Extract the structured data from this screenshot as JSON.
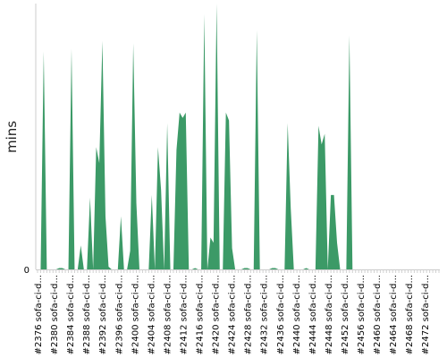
{
  "chart_data": {
    "type": "area",
    "title": "",
    "xlabel": "",
    "ylabel": "mins",
    "y_tick_labels": [
      "0"
    ],
    "ylim": [
      0,
      100
    ],
    "grid": false,
    "legend": "none",
    "fill_color": "#3c9a67",
    "axis_color": "#cccccc",
    "x_tick_labels": [
      "#2376 sofa-ci-d...",
      "#2380 sofa-ci-d...",
      "#2384 sofa-ci-d...",
      "#2388 sofa-ci-d...",
      "#2392 sofa-ci-d...",
      "#2396 sofa-ci-d...",
      "#2400 sofa-ci-d...",
      "#2404 sofa-ci-d...",
      "#2408 sofa-ci-d...",
      "#2412 sofa-ci-d...",
      "#2416 sofa-ci-d...",
      "#2420 sofa-ci-d...",
      "#2424 sofa-ci-d...",
      "#2428 sofa-ci-d...",
      "#2432 sofa-ci-d...",
      "#2436 sofa-ci-d...",
      "#2440 sofa-ci-d...",
      "#2444 sofa-ci-d...",
      "#2448 sofa-ci-d...",
      "#2452 sofa-ci-d...",
      "#2456 sofa-ci-d...",
      "#2460 sofa-ci-d...",
      "#2464 sofa-ci-d...",
      "#2468 sofa-ci-d...",
      "#2472 sofa-ci-d..."
    ],
    "series": [
      {
        "values": [
          0,
          0,
          82,
          0,
          0,
          0,
          0,
          0.5,
          0.5,
          0,
          0,
          83,
          0,
          0,
          9,
          0,
          0,
          27,
          0,
          46,
          40,
          86,
          20,
          1,
          0,
          0,
          0,
          20,
          0,
          0,
          7,
          85,
          25,
          0,
          0,
          0,
          0,
          28,
          0,
          46,
          30,
          0,
          55,
          0,
          0,
          45,
          59,
          57,
          59,
          0,
          0,
          0.5,
          0,
          0,
          96,
          0,
          12,
          10,
          100,
          0,
          0,
          59,
          56,
          8,
          0,
          0,
          0,
          0.5,
          0.5,
          0,
          0,
          90,
          0,
          0,
          0,
          0,
          0.5,
          0.5,
          0,
          0,
          0,
          55,
          23,
          0,
          0,
          0,
          0,
          0.5,
          0,
          0,
          0,
          54,
          47,
          51,
          0,
          28,
          28,
          10,
          0,
          0,
          0,
          88,
          0,
          0,
          0,
          0,
          0,
          0,
          0,
          0,
          0,
          0,
          0,
          0,
          0,
          0,
          0,
          0,
          0,
          0,
          0,
          0,
          0,
          0,
          0,
          0,
          0,
          0,
          0,
          0,
          0
        ]
      }
    ]
  }
}
